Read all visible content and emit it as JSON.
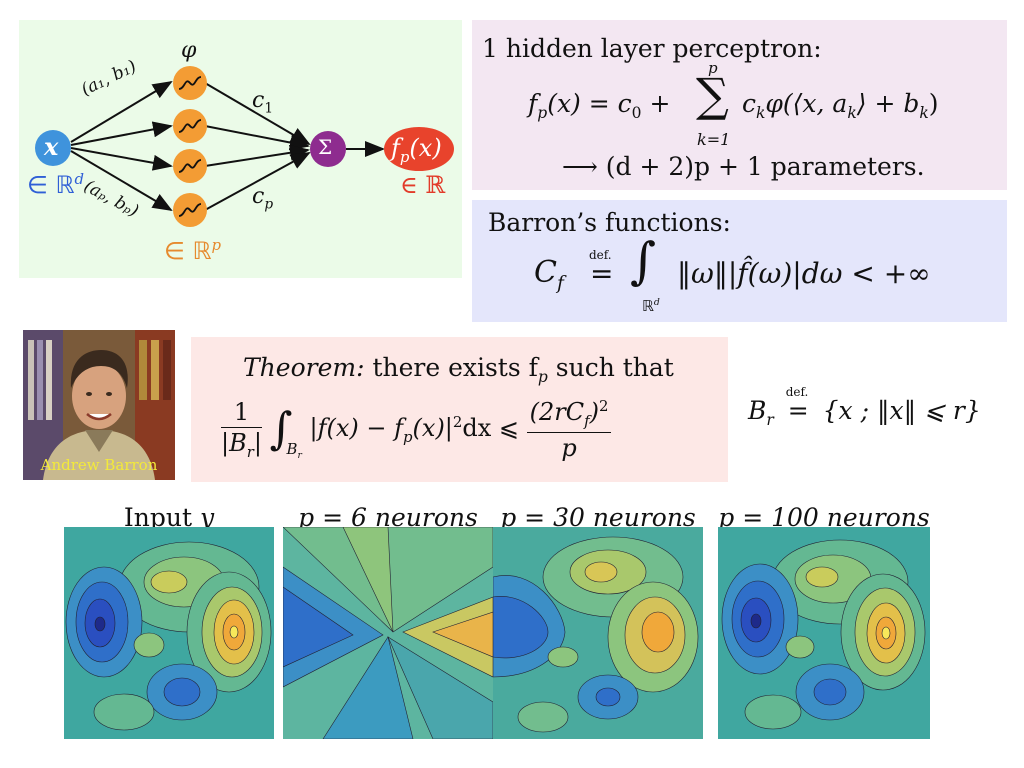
{
  "network": {
    "input_label": "x",
    "input_space": "∈ ℝ",
    "input_space_sup": "d",
    "hidden_space": "∈ ℝ",
    "hidden_space_sup": "p",
    "activation_label": "φ",
    "sum_label": "Σ",
    "output_label": "f",
    "output_sub": "p",
    "output_arg": "(x)",
    "output_space": "∈ ℝ",
    "edge_top_label": "(a₁, b₁)",
    "edge_bottom_label": "(aₚ, bₚ)",
    "weight_top": "c",
    "weight_top_sub": "1",
    "weight_bottom": "c",
    "weight_bottom_sub": "p",
    "colors": {
      "input": "#3f93dc",
      "hidden": "#f39c34",
      "sum": "#8e2c8f",
      "output": "#e8432c",
      "blue_text": "#2f5fd6",
      "orange_text": "#e68a2e",
      "red_text": "#e23b2a"
    }
  },
  "perceptron": {
    "title": "1 hidden layer perceptron:",
    "lhs": "f",
    "lhs_sub": "p",
    "lhs_arg": "(x) = c",
    "lhs_c_sub": "0",
    "plus": " + ",
    "sum_upper": "p",
    "sum_lower": "k=1",
    "sum_symbol": "∑",
    "term": "c",
    "term_sub": "k",
    "term_rest": "φ(⟨x, a",
    "term_rest_sub": "k",
    "term_end": "⟩ + b",
    "term_end_sub": "k",
    "term_close": ")",
    "params_arrow": "⟶ (d + 2)p + 1 parameters."
  },
  "barron": {
    "title": "Barron’s functions:",
    "lhs": "C",
    "lhs_sub": "f",
    "def": "def.",
    "eq": "=",
    "integral": "∫",
    "integral_domain": "ℝ",
    "integral_domain_sup": "d",
    "integrand": "‖ω‖|f̂(ω)|dω < +∞"
  },
  "photo": {
    "caption": "Andrew Barron"
  },
  "theorem": {
    "label": "Theorem:",
    "statement": " there exists f",
    "statement_sub": "p",
    "statement_end": " such that",
    "frac1_num": "1",
    "frac1_den": "|B",
    "frac1_den_sub": "r",
    "frac1_den_end": "|",
    "integral": "∫",
    "integral_sub": "B",
    "integral_sub_sub": "r",
    "integrand": "|f(x) − f",
    "integrand_sub": "p",
    "integrand_end": "(x)|",
    "integrand_sup": "2",
    "integrand_dx": "dx ⩽",
    "frac2_num": "(2rC",
    "frac2_num_sub": "f",
    "frac2_num_end": ")",
    "frac2_num_sup": "2",
    "frac2_den": "p"
  },
  "ball_def": {
    "lhs": "B",
    "lhs_sub": "r",
    "def": "def.",
    "eq": "=",
    "rhs": "{x ; ‖x‖ ⩽ r}"
  },
  "plots": [
    {
      "title_text": "Input ",
      "title_var": "y"
    },
    {
      "title_text": "p = 6 neurons",
      "title_var": ""
    },
    {
      "title_text": "p = 30 neurons",
      "title_var": ""
    },
    {
      "title_text": "p = 100 neurons",
      "title_var": ""
    }
  ]
}
